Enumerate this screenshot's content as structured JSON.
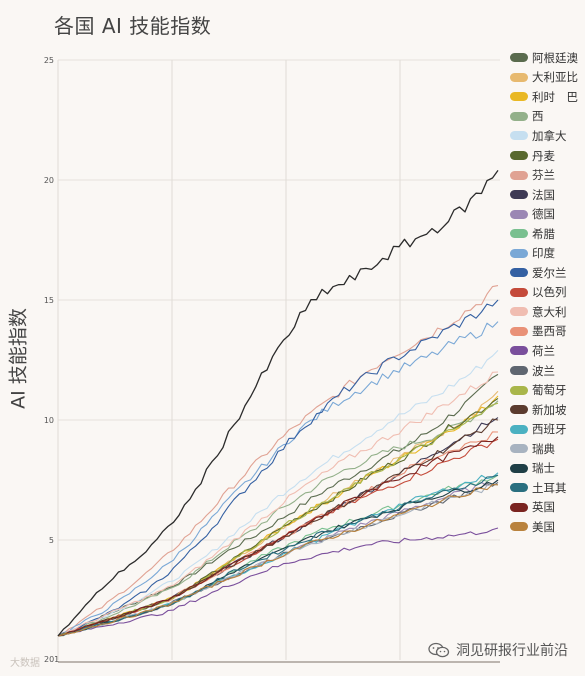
{
  "title": "各国 AI 技能指数",
  "ylabel": "AI 技能指数",
  "watermark": "大数据",
  "wechat_account": "洞见研报行业前沿",
  "chart_data": {
    "type": "line",
    "title": "各国 AI 技能指数",
    "ylabel": "AI 技能指数",
    "xlabel": "",
    "x_tick_labels": [
      "201"
    ],
    "x": [
      0,
      1,
      2,
      3,
      4,
      5,
      6,
      7,
      8,
      9,
      10,
      11,
      12,
      13,
      14,
      15,
      16,
      17,
      18,
      19,
      20
    ],
    "ylim": [
      0,
      25
    ],
    "yticks": [
      5,
      10,
      15,
      20,
      25
    ],
    "grid": "vertical and horizontal",
    "legend_position": "right",
    "series": [
      {
        "name": "阿根廷澳",
        "color": "#5a6b4e",
        "values": [
          1.0,
          1.4,
          1.8,
          2.2,
          2.6,
          3.0,
          3.5,
          4.1,
          4.7,
          5.2,
          5.8,
          6.4,
          7.0,
          7.5,
          8.0,
          8.5,
          9.0,
          9.6,
          10.3,
          11.0,
          11.9
        ]
      },
      {
        "name": "大利亚比",
        "color": "#e7b96f",
        "values": [
          1.0,
          1.3,
          1.6,
          1.9,
          2.2,
          2.5,
          3.0,
          3.6,
          4.2,
          4.8,
          5.4,
          6.0,
          6.6,
          7.2,
          7.7,
          8.2,
          8.7,
          9.2,
          9.8,
          10.4,
          11.2
        ]
      },
      {
        "name": "利时　巴",
        "color": "#e9b824",
        "values": [
          1.0,
          1.3,
          1.6,
          1.9,
          2.2,
          2.5,
          3.0,
          3.6,
          4.2,
          4.8,
          5.4,
          6.0,
          6.5,
          7.0,
          7.6,
          8.1,
          8.6,
          9.2,
          9.7,
          10.2,
          11.0
        ]
      },
      {
        "name": "西",
        "color": "#93b08a",
        "values": [
          1.0,
          1.35,
          1.7,
          2.1,
          2.5,
          2.9,
          3.5,
          4.2,
          4.9,
          5.5,
          6.2,
          6.8,
          7.4,
          7.9,
          8.3,
          8.7,
          9.0,
          9.3,
          9.7,
          10.2,
          10.8
        ]
      },
      {
        "name": "加拿大",
        "color": "#c6dff0",
        "values": [
          1.0,
          1.4,
          1.8,
          2.2,
          2.7,
          3.2,
          3.8,
          4.5,
          5.3,
          6.0,
          6.8,
          7.5,
          8.1,
          8.7,
          9.3,
          9.9,
          10.4,
          10.9,
          11.5,
          12.1,
          12.9
        ]
      },
      {
        "name": "丹麦",
        "color": "#59692e",
        "values": [
          1.0,
          1.3,
          1.6,
          1.9,
          2.2,
          2.5,
          3.0,
          3.6,
          4.2,
          4.8,
          5.4,
          6.0,
          6.5,
          7.0,
          7.6,
          8.1,
          8.6,
          9.2,
          9.8,
          10.3,
          10.9
        ]
      },
      {
        "name": "芬兰",
        "color": "#e0a293",
        "values": [
          1.0,
          1.6,
          2.2,
          2.9,
          3.6,
          4.4,
          5.3,
          6.3,
          7.3,
          8.2,
          9.1,
          9.9,
          10.6,
          11.3,
          12.0,
          12.6,
          13.1,
          13.6,
          14.2,
          14.8,
          15.6
        ]
      },
      {
        "name": "法国",
        "color": "#3e3a55",
        "values": [
          1.0,
          1.3,
          1.6,
          1.9,
          2.2,
          2.5,
          3.0,
          3.5,
          4.0,
          4.5,
          5.0,
          5.5,
          6.0,
          6.5,
          7.0,
          7.5,
          8.0,
          8.6,
          9.1,
          9.6,
          10.1
        ]
      },
      {
        "name": "德国",
        "color": "#9b87b4",
        "values": [
          1.0,
          1.25,
          1.5,
          1.75,
          2.0,
          2.3,
          2.7,
          3.1,
          3.5,
          3.9,
          4.3,
          4.7,
          5.0,
          5.4,
          5.7,
          6.0,
          6.3,
          6.6,
          6.9,
          7.2,
          7.5
        ]
      },
      {
        "name": "希腊",
        "color": "#79c08f",
        "values": [
          1.0,
          1.25,
          1.5,
          1.75,
          2.0,
          2.3,
          2.7,
          3.2,
          3.7,
          4.2,
          4.6,
          5.0,
          5.4,
          5.7,
          6.0,
          6.3,
          6.6,
          6.9,
          7.2,
          7.4,
          7.7
        ]
      },
      {
        "name": "印度",
        "color": "#7aa8d6",
        "values": [
          1.0,
          1.5,
          2.0,
          2.6,
          3.3,
          4.0,
          4.9,
          5.9,
          6.9,
          7.8,
          8.7,
          9.6,
          10.3,
          10.9,
          11.4,
          11.9,
          12.3,
          12.7,
          13.2,
          13.6,
          14.1
        ]
      },
      {
        "name": "爱尔兰",
        "color": "#3460a2",
        "values": [
          1.0,
          1.4,
          1.8,
          2.3,
          2.9,
          3.6,
          4.5,
          5.5,
          6.6,
          7.6,
          8.6,
          9.6,
          10.4,
          11.2,
          11.8,
          12.4,
          12.9,
          13.4,
          13.9,
          14.4,
          15.0
        ]
      },
      {
        "name": "以色列",
        "color": "#c44a3a",
        "values": [
          1.0,
          1.3,
          1.6,
          1.9,
          2.2,
          2.5,
          3.0,
          3.5,
          4.0,
          4.5,
          5.0,
          5.5,
          6.0,
          6.4,
          6.8,
          7.2,
          7.6,
          8.0,
          8.4,
          8.8,
          9.2
        ]
      },
      {
        "name": "意大利",
        "color": "#f0bdb1",
        "values": [
          1.0,
          1.4,
          1.8,
          2.2,
          2.6,
          3.0,
          3.6,
          4.3,
          5.0,
          5.7,
          6.4,
          7.1,
          7.7,
          8.3,
          8.8,
          9.3,
          9.8,
          10.3,
          10.9,
          11.4,
          12.0
        ]
      },
      {
        "name": "墨西哥",
        "color": "#e99177",
        "values": [
          1.0,
          1.3,
          1.6,
          1.9,
          2.2,
          2.5,
          3.0,
          3.5,
          4.0,
          4.5,
          5.0,
          5.5,
          6.0,
          6.5,
          7.0,
          7.5,
          8.0,
          8.4,
          8.8,
          9.1,
          9.5
        ]
      },
      {
        "name": "荷兰",
        "color": "#7a4f9c",
        "values": [
          1.0,
          1.2,
          1.4,
          1.6,
          1.8,
          2.0,
          2.4,
          2.8,
          3.2,
          3.6,
          3.9,
          4.2,
          4.4,
          4.6,
          4.8,
          4.9,
          5.0,
          5.1,
          5.2,
          5.3,
          5.5
        ]
      },
      {
        "name": "波兰",
        "color": "#5f6670",
        "values": [
          1.0,
          1.25,
          1.5,
          1.75,
          2.0,
          2.3,
          2.7,
          3.1,
          3.5,
          3.9,
          4.3,
          4.7,
          5.0,
          5.3,
          5.6,
          5.9,
          6.2,
          6.5,
          6.8,
          7.1,
          7.4
        ]
      },
      {
        "name": "葡萄牙",
        "color": "#a9b64a",
        "values": [
          1.0,
          1.3,
          1.6,
          1.9,
          2.2,
          2.5,
          3.0,
          3.6,
          4.2,
          4.8,
          5.4,
          6.0,
          6.5,
          7.0,
          7.6,
          8.1,
          8.6,
          9.1,
          9.6,
          10.1,
          10.7
        ]
      },
      {
        "name": "新加坡",
        "color": "#5b3b2e",
        "values": [
          1.0,
          1.3,
          1.6,
          1.9,
          2.2,
          2.5,
          3.0,
          3.5,
          4.0,
          4.5,
          5.0,
          5.5,
          6.0,
          6.5,
          7.0,
          7.5,
          8.0,
          8.5,
          9.0,
          9.5,
          10.0
        ]
      },
      {
        "name": "西班牙",
        "color": "#4bb1c1",
        "values": [
          1.0,
          1.25,
          1.5,
          1.75,
          2.0,
          2.3,
          2.7,
          3.1,
          3.5,
          3.9,
          4.3,
          4.7,
          5.1,
          5.5,
          5.9,
          6.3,
          6.6,
          6.9,
          7.2,
          7.5,
          7.8
        ]
      },
      {
        "name": "瑞典",
        "color": "#a8b3c0",
        "values": [
          1.0,
          1.25,
          1.5,
          1.75,
          2.0,
          2.3,
          2.7,
          3.1,
          3.5,
          3.9,
          4.3,
          4.7,
          5.0,
          5.3,
          5.6,
          5.9,
          6.2,
          6.5,
          6.8,
          7.0,
          7.3
        ]
      },
      {
        "name": "瑞士",
        "color": "#1f3f46",
        "values": [
          1.0,
          1.25,
          1.5,
          1.75,
          2.0,
          2.3,
          2.7,
          3.2,
          3.7,
          4.1,
          4.5,
          4.9,
          5.3,
          5.6,
          5.9,
          6.2,
          6.5,
          6.8,
          7.0,
          7.2,
          7.5
        ]
      },
      {
        "name": "土耳其",
        "color": "#2a6f7f",
        "values": [
          1.0,
          1.25,
          1.5,
          1.75,
          2.0,
          2.3,
          2.7,
          3.2,
          3.7,
          4.1,
          4.5,
          4.9,
          5.3,
          5.6,
          5.9,
          6.2,
          6.5,
          6.8,
          7.1,
          7.4,
          7.7
        ]
      },
      {
        "name": "英国",
        "color": "#7a2420",
        "values": [
          1.0,
          1.3,
          1.6,
          1.9,
          2.2,
          2.5,
          3.0,
          3.5,
          4.0,
          4.5,
          5.0,
          5.5,
          6.0,
          6.5,
          7.0,
          7.4,
          7.8,
          8.2,
          8.6,
          8.9,
          9.3
        ]
      },
      {
        "name": "美国",
        "color": "#b9823d",
        "values": [
          1.0,
          1.25,
          1.5,
          1.75,
          2.0,
          2.3,
          2.7,
          3.1,
          3.5,
          3.9,
          4.3,
          4.7,
          5.0,
          5.3,
          5.6,
          5.9,
          6.2,
          6.5,
          6.8,
          7.1,
          7.3
        ]
      },
      {
        "name": "",
        "color": "#2b2b2b",
        "values": [
          1.0,
          2.0,
          3.0,
          3.8,
          4.5,
          5.5,
          6.7,
          8.2,
          9.8,
          11.4,
          12.9,
          14.3,
          15.3,
          15.7,
          16.2,
          16.9,
          17.4,
          17.9,
          18.5,
          19.3,
          20.4
        ]
      }
    ]
  }
}
